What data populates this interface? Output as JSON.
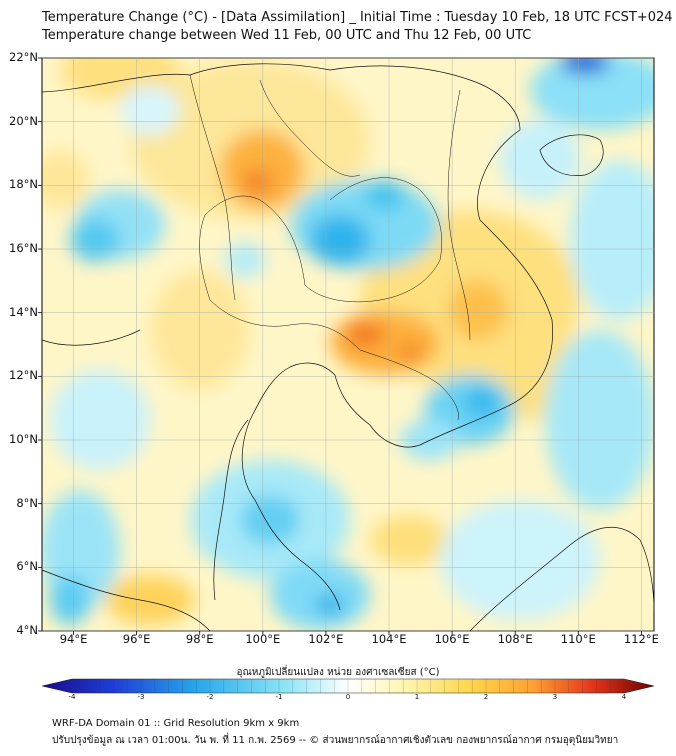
{
  "header": {
    "title_line1": "Temperature Change (°C) - [Data Assimilation] _ Initial Time : Tuesday 10 Feb, 18 UTC FCST+024",
    "title_line2": "Temperature change between Wed 11 Feb, 00 UTC and Thu 12 Feb, 00 UTC"
  },
  "map": {
    "lat_labels": [
      "22°N",
      "20°N",
      "18°N",
      "16°N",
      "14°N",
      "12°N",
      "10°N",
      "8°N",
      "6°N",
      "4°N"
    ],
    "lon_labels": [
      "94°E",
      "96°E",
      "98°E",
      "100°E",
      "102°E",
      "104°E",
      "106°E",
      "108°E",
      "110°E",
      "112°E"
    ],
    "lat_range": [
      4,
      22
    ],
    "lon_range": [
      93,
      112.4
    ]
  },
  "colorbar": {
    "title": "อุณหภูมิเปลี่ยนแปลง หน่วย องศาเซลเซียส (°C)",
    "ticks": [
      "-4",
      "-3",
      "-2",
      "-1",
      "0",
      "1",
      "2",
      "3",
      "4"
    ],
    "range": [
      -4,
      4
    ],
    "colors": [
      "#1a0a8c",
      "#1f3fd9",
      "#26a6ea",
      "#43d6f5",
      "#bff3fb",
      "#ffffff",
      "#fff4a8",
      "#fed64b",
      "#fea234",
      "#f54b1b",
      "#c20a0a",
      "#6e0000"
    ]
  },
  "footer": {
    "line1": "WRF-DA Domain 01 :: Grid Resolution 9km x 9km",
    "line2": "ปรับปรุงข้อมูล ณ เวลา 01:00น. วัน พ. ที่ 11 ก.พ. 2569 -- © ส่วนพยากรณ์อากาศเชิงตัวเลข กองพยากรณ์อากาศ กรมอุตุนิยมวิทยา"
  }
}
